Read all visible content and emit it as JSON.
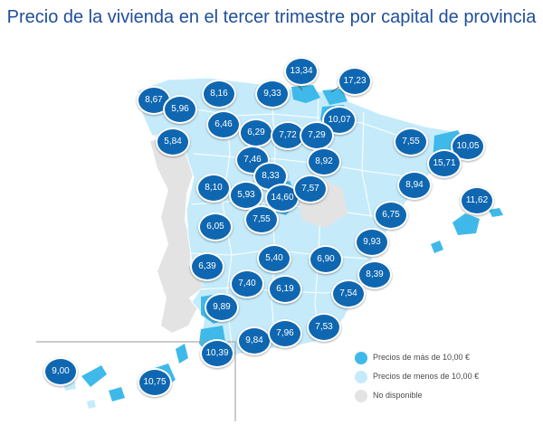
{
  "title": "Precio de la vivienda en el tercer trimestre por capital de provincia",
  "colors": {
    "high": "#3fb9ea",
    "low": "#c5ebfb",
    "na": "#e3e3e3",
    "badge": "#0f67b1",
    "title": "#1f4e9a"
  },
  "legend": [
    {
      "label": "Precios de más de 10,00 €",
      "color_key": "high"
    },
    {
      "label": "Precios de menos de 10,00 €",
      "color_key": "low"
    },
    {
      "label": "No disponible",
      "color_key": "na"
    }
  ],
  "prices": [
    {
      "value": "8,67"
    },
    {
      "value": "8,16"
    },
    {
      "value": "9,33"
    },
    {
      "value": "13,34"
    },
    {
      "value": "17,23"
    },
    {
      "value": "5,96"
    },
    {
      "value": "6,46"
    },
    {
      "value": "10,07"
    },
    {
      "value": "5,84"
    },
    {
      "value": "6,29"
    },
    {
      "value": "7,72"
    },
    {
      "value": "7,29"
    },
    {
      "value": "7,55"
    },
    {
      "value": "10,05"
    },
    {
      "value": "7,46"
    },
    {
      "value": "8,92"
    },
    {
      "value": "15,71"
    },
    {
      "value": "8,33"
    },
    {
      "value": "8,94"
    },
    {
      "value": "8,10"
    },
    {
      "value": "5,93"
    },
    {
      "value": "14,60"
    },
    {
      "value": "7,57"
    },
    {
      "value": "11,62"
    },
    {
      "value": "7,55"
    },
    {
      "value": "6,75"
    },
    {
      "value": "6,05"
    },
    {
      "value": "9,93"
    },
    {
      "value": "5,40"
    },
    {
      "value": "6,90"
    },
    {
      "value": "6,39"
    },
    {
      "value": "8,39"
    },
    {
      "value": "7,40"
    },
    {
      "value": "6,19"
    },
    {
      "value": "7,54"
    },
    {
      "value": "9,89"
    },
    {
      "value": "7,53"
    },
    {
      "value": "9,84"
    },
    {
      "value": "7,96"
    },
    {
      "value": "10,39"
    },
    {
      "value": "9,00"
    },
    {
      "value": "10,75"
    }
  ]
}
